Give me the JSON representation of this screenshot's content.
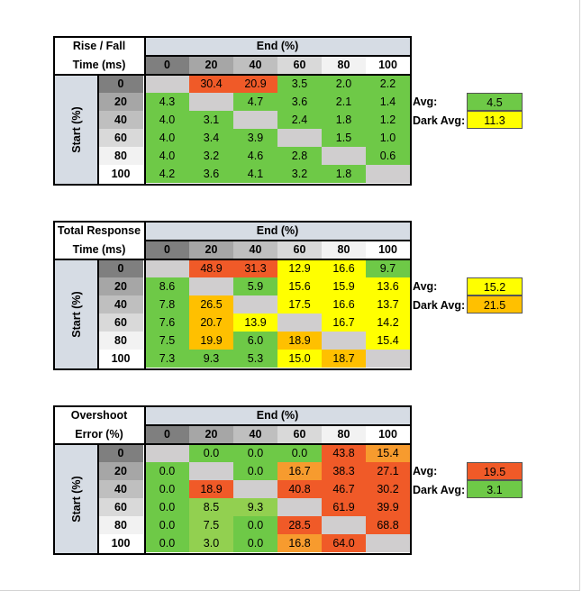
{
  "end_label": "End (%)",
  "start_label": "Start (%)",
  "columns": [
    "0",
    "20",
    "40",
    "60",
    "80",
    "100"
  ],
  "rows": [
    "0",
    "20",
    "40",
    "60",
    "80",
    "100"
  ],
  "avg_label": "Avg:",
  "dark_avg_label": "Dark Avg:",
  "colors": {
    "header_bg": "#d6dce4",
    "diag": "#d0cecf",
    "green": "#6ec947",
    "lime": "#92d050",
    "yellow": "#ffff00",
    "amber": "#ffc000",
    "orange": "#f79b2e",
    "red": "#f05a28"
  },
  "tables": [
    {
      "title_line1": "Rise / Fall",
      "title_line2": "Time (ms)",
      "cells": [
        [
          "",
          "30.4",
          "20.9",
          "3.5",
          "2.0",
          "2.2"
        ],
        [
          "4.3",
          "",
          "4.7",
          "3.6",
          "2.1",
          "1.4"
        ],
        [
          "4.0",
          "3.1",
          "",
          "2.4",
          "1.8",
          "1.2"
        ],
        [
          "4.0",
          "3.4",
          "3.9",
          "",
          "1.5",
          "1.0"
        ],
        [
          "4.0",
          "3.2",
          "4.6",
          "2.8",
          "",
          "0.6"
        ],
        [
          "4.2",
          "3.6",
          "4.1",
          "3.2",
          "1.8",
          ""
        ]
      ],
      "cell_colors": [
        [
          "diag",
          "red",
          "red",
          "green",
          "green",
          "green"
        ],
        [
          "green",
          "diag",
          "green",
          "green",
          "green",
          "green"
        ],
        [
          "green",
          "green",
          "diag",
          "green",
          "green",
          "green"
        ],
        [
          "green",
          "green",
          "green",
          "diag",
          "green",
          "green"
        ],
        [
          "green",
          "green",
          "green",
          "green",
          "diag",
          "green"
        ],
        [
          "green",
          "green",
          "green",
          "green",
          "green",
          "diag"
        ]
      ],
      "avg": "4.5",
      "avg_color": "green",
      "dark_avg": "11.3",
      "dark_avg_color": "yellow"
    },
    {
      "title_line1": "Total Response",
      "title_line2": "Time (ms)",
      "cells": [
        [
          "",
          "48.9",
          "31.3",
          "12.9",
          "16.6",
          "9.7"
        ],
        [
          "8.6",
          "",
          "5.9",
          "15.6",
          "15.9",
          "13.6"
        ],
        [
          "7.8",
          "26.5",
          "",
          "17.5",
          "16.6",
          "13.7"
        ],
        [
          "7.6",
          "20.7",
          "13.9",
          "",
          "16.7",
          "14.2"
        ],
        [
          "7.5",
          "19.9",
          "6.0",
          "18.9",
          "",
          "15.4"
        ],
        [
          "7.3",
          "9.3",
          "5.3",
          "15.0",
          "18.7",
          ""
        ]
      ],
      "cell_colors": [
        [
          "diag",
          "red",
          "red",
          "yellow",
          "yellow",
          "green"
        ],
        [
          "green",
          "diag",
          "green",
          "yellow",
          "yellow",
          "yellow"
        ],
        [
          "green",
          "amber",
          "diag",
          "yellow",
          "yellow",
          "yellow"
        ],
        [
          "green",
          "amber",
          "yellow",
          "diag",
          "yellow",
          "yellow"
        ],
        [
          "green",
          "amber",
          "green",
          "amber",
          "diag",
          "yellow"
        ],
        [
          "green",
          "green",
          "green",
          "yellow",
          "amber",
          "diag"
        ]
      ],
      "avg": "15.2",
      "avg_color": "yellow",
      "dark_avg": "21.5",
      "dark_avg_color": "amber"
    },
    {
      "title_line1": "Overshoot",
      "title_line2": "Error (%)",
      "cells": [
        [
          "",
          "0.0",
          "0.0",
          "0.0",
          "43.8",
          "15.4"
        ],
        [
          "0.0",
          "",
          "0.0",
          "16.7",
          "38.3",
          "27.1"
        ],
        [
          "0.0",
          "18.9",
          "",
          "40.8",
          "46.7",
          "30.2"
        ],
        [
          "0.0",
          "8.5",
          "9.3",
          "",
          "61.9",
          "39.9"
        ],
        [
          "0.0",
          "7.5",
          "0.0",
          "28.5",
          "",
          "68.8"
        ],
        [
          "0.0",
          "3.0",
          "0.0",
          "16.8",
          "64.0",
          ""
        ]
      ],
      "cell_colors": [
        [
          "diag",
          "green",
          "green",
          "green",
          "red",
          "orange"
        ],
        [
          "green",
          "diag",
          "green",
          "orange",
          "red",
          "red"
        ],
        [
          "green",
          "red",
          "diag",
          "red",
          "red",
          "red"
        ],
        [
          "green",
          "lime",
          "lime",
          "diag",
          "red",
          "red"
        ],
        [
          "green",
          "lime",
          "green",
          "red",
          "diag",
          "red"
        ],
        [
          "green",
          "lime",
          "green",
          "orange",
          "red",
          "diag"
        ]
      ],
      "avg": "19.5",
      "avg_color": "red",
      "dark_avg": "3.1",
      "dark_avg_color": "green"
    }
  ]
}
